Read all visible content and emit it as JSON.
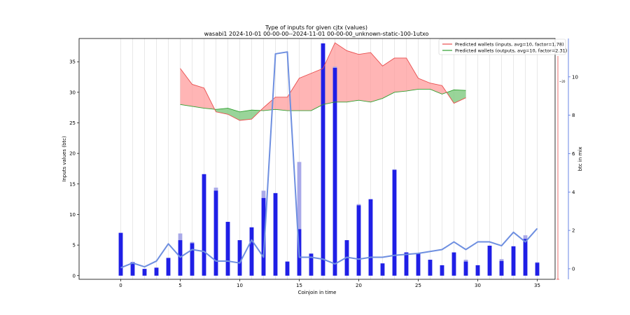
{
  "chart_data": {
    "type": "bar",
    "title": "Type of inputs for given cjtx (values)",
    "subtitle": "wasabi1 2024-10-01 00-00-00--2024-11-01 00-00-00_unknown-static-100-1utxo",
    "xlabel": "Coinjoin in time",
    "ylabel": "Inputs values (btc)",
    "y2label": "btc in mix",
    "x_range": [
      -3.5,
      36.5
    ],
    "ylim": [
      -0.6,
      38.8
    ],
    "y2lim": [
      -0.55,
      12.0
    ],
    "x_ticks": [
      0,
      5,
      10,
      15,
      20,
      25,
      30,
      35
    ],
    "y_ticks": [
      0,
      5,
      10,
      15,
      20,
      25,
      30,
      35
    ],
    "y2_ticks": [
      0,
      2,
      4,
      6,
      8,
      10
    ],
    "mini_ticks": [
      "~20"
    ],
    "grid": "vertical lines at each coinjoin",
    "legend_position": "top-right",
    "bars_base": {
      "x": [
        0,
        1,
        2,
        3,
        4,
        5,
        6,
        7,
        8,
        9,
        10,
        11,
        12,
        13,
        14,
        15,
        16,
        17,
        18,
        19,
        20,
        21,
        22,
        23,
        24,
        25,
        26,
        27,
        28,
        29,
        30,
        31,
        32,
        33,
        34,
        35
      ],
      "values": [
        7.0,
        2.2,
        1.1,
        1.3,
        2.9,
        5.8,
        5.3,
        16.6,
        13.9,
        8.8,
        5.8,
        7.9,
        12.7,
        13.5,
        2.3,
        7.6,
        3.6,
        38.0,
        34.0,
        5.8,
        11.5,
        12.5,
        2.0,
        17.3,
        3.8,
        3.6,
        2.6,
        1.7,
        3.8,
        2.3,
        1.7,
        4.9,
        2.4,
        4.8,
        6.0,
        2.1
      ]
    },
    "bars_overlay": {
      "x": [
        0,
        1,
        2,
        3,
        4,
        5,
        6,
        7,
        8,
        9,
        10,
        11,
        12,
        13,
        14,
        15,
        16,
        17,
        18,
        19,
        20,
        21,
        22,
        23,
        24,
        25,
        26,
        27,
        28,
        29,
        30,
        31,
        32,
        33,
        34,
        35
      ],
      "values": [
        7.0,
        2.2,
        1.1,
        1.3,
        2.9,
        6.9,
        5.5,
        16.6,
        14.4,
        8.8,
        5.8,
        7.9,
        13.9,
        13.5,
        2.3,
        18.6,
        3.6,
        38.0,
        34.2,
        5.8,
        11.7,
        12.5,
        2.0,
        17.4,
        3.8,
        3.6,
        2.6,
        1.7,
        3.8,
        2.6,
        1.7,
        4.9,
        2.7,
        4.8,
        6.6,
        2.2
      ]
    },
    "series": [
      {
        "name": "Predicted wallets (inputs, avg=10, factor=1.78)",
        "x": [
          5,
          6,
          7,
          8,
          9,
          10,
          11,
          12,
          13,
          14,
          15,
          16,
          17,
          18,
          19,
          20,
          21,
          22,
          23,
          24,
          25,
          26,
          27,
          28,
          29
        ],
        "values": [
          33.9,
          31.3,
          30.7,
          26.8,
          26.4,
          25.4,
          25.6,
          27.5,
          29.2,
          29.2,
          32.3,
          33.1,
          33.9,
          38.1,
          36.8,
          36.2,
          36.5,
          34.3,
          35.6,
          35.6,
          32.3,
          31.5,
          31.1,
          28.2,
          29.1
        ]
      },
      {
        "name": "Predicted wallets (outputs, avg=10, factor=2.31)",
        "x": [
          5,
          6,
          7,
          8,
          9,
          10,
          11,
          12,
          13,
          14,
          15,
          16,
          17,
          18,
          19,
          20,
          21,
          22,
          23,
          24,
          25,
          26,
          27,
          28,
          29
        ],
        "values": [
          28.0,
          27.7,
          27.4,
          27.2,
          27.4,
          26.8,
          27.1,
          27.0,
          27.2,
          27.0,
          27.0,
          27.0,
          28.0,
          28.4,
          28.4,
          28.7,
          28.4,
          29.0,
          30.0,
          30.2,
          30.5,
          30.5,
          29.7,
          30.4,
          30.3
        ]
      },
      {
        "name": "btc in mix",
        "axis": "right",
        "x": [
          0,
          1,
          2,
          3,
          4,
          5,
          6,
          7,
          8,
          9,
          10,
          11,
          12,
          13,
          14,
          15,
          16,
          17,
          18,
          19,
          20,
          21,
          22,
          23,
          24,
          25,
          26,
          27,
          28,
          29,
          30,
          31,
          32,
          33,
          34,
          35
        ],
        "values": [
          0.05,
          0.3,
          0.1,
          0.4,
          1.3,
          0.6,
          1.0,
          0.9,
          0.4,
          0.4,
          0.3,
          1.5,
          0.6,
          11.2,
          11.3,
          0.6,
          0.6,
          0.5,
          0.25,
          0.6,
          0.5,
          0.6,
          0.6,
          0.7,
          0.75,
          0.8,
          0.9,
          1.0,
          1.4,
          1.0,
          1.4,
          1.4,
          1.2,
          1.9,
          1.4,
          2.1
        ]
      }
    ],
    "colors": {
      "bars_base": "#1f1fe6",
      "bars_overlay": "#a9a9e9",
      "inputs_line": "#e84c4c",
      "inputs_fill": "#ff9c9c",
      "outputs_line": "#2ea02e",
      "outputs_fill": "#7fc97f",
      "btc_line": "#6e8fe0",
      "right_axis": "#4466dd",
      "grid": "#d8d8d8"
    }
  }
}
